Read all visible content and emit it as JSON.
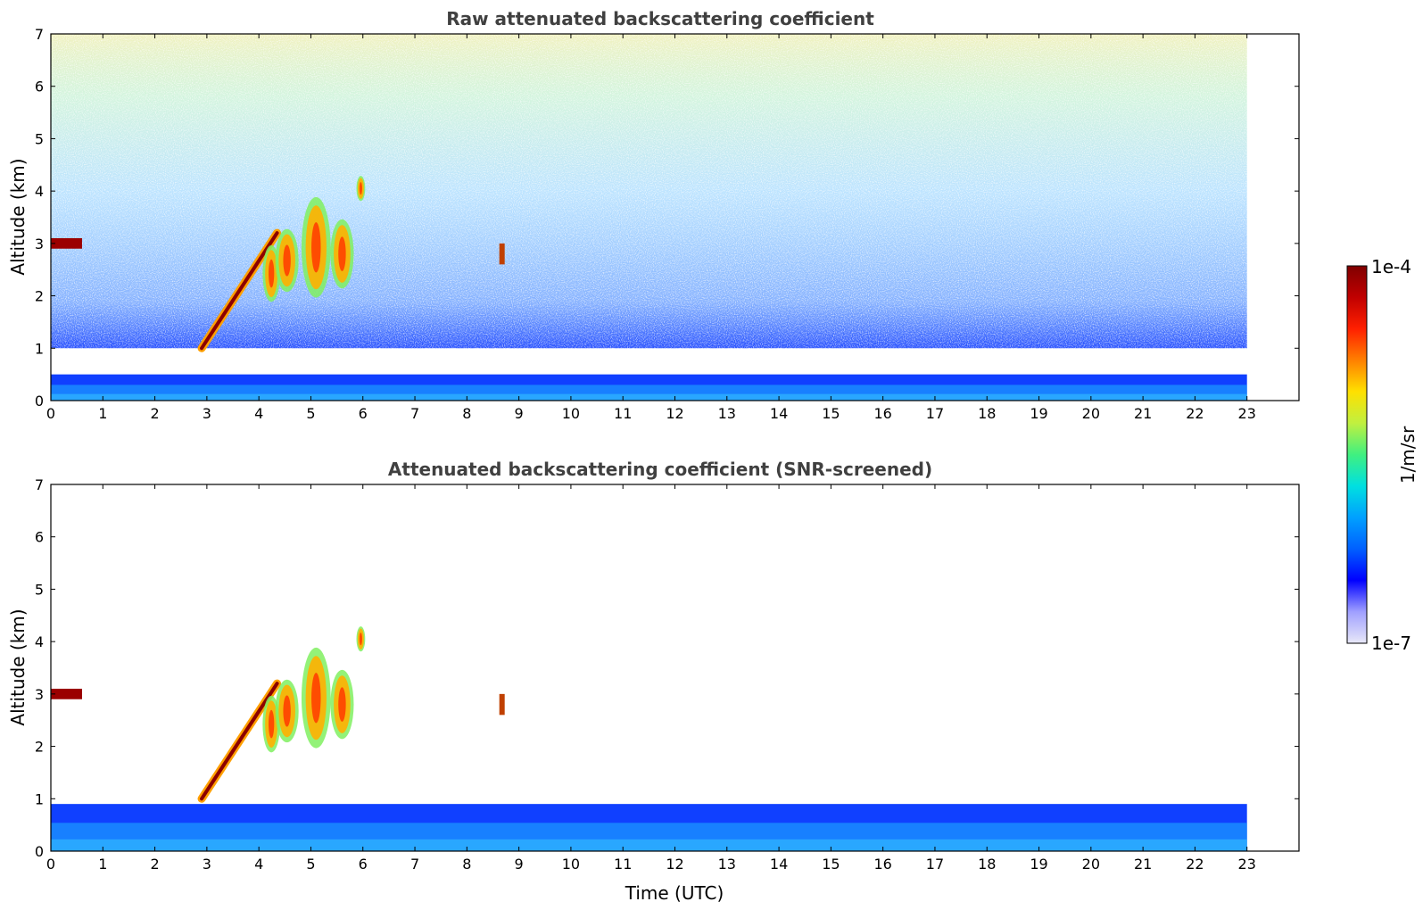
{
  "chart_data": [
    {
      "type": "heatmap",
      "title": "Raw attenuated backscattering coefficient",
      "xlabel": "",
      "ylabel": "Altitude (km)",
      "xlim": [
        0,
        24
      ],
      "ylim": [
        0,
        7
      ],
      "x_ticks": [
        0,
        1,
        2,
        3,
        4,
        5,
        6,
        7,
        8,
        9,
        10,
        11,
        12,
        13,
        14,
        15,
        16,
        17,
        18,
        19,
        20,
        21,
        22,
        23
      ],
      "y_ticks": [
        0,
        1,
        2,
        3,
        4,
        5,
        6,
        7
      ],
      "data_extent_x": [
        0,
        23
      ],
      "features": [
        {
          "kind": "boundary-layer",
          "x_range": [
            0,
            23
          ],
          "top_km": 0.5
        },
        {
          "kind": "noise",
          "x_range": [
            0,
            23
          ],
          "y_range": [
            1,
            7
          ]
        },
        {
          "kind": "cloud-layer",
          "x_range": [
            0,
            0.6
          ],
          "altitude_km": 3.0
        },
        {
          "kind": "rising-layer",
          "from": [
            2.9,
            1.0
          ],
          "to": [
            4.35,
            3.2
          ]
        },
        {
          "kind": "cloud-patches",
          "x_range": [
            4.0,
            6.0
          ],
          "y_range": [
            1.8,
            4.3
          ]
        },
        {
          "kind": "cloud-patch",
          "x_range": [
            8.6,
            8.75
          ],
          "y_range": [
            2.6,
            3.0
          ]
        }
      ]
    },
    {
      "type": "heatmap",
      "title": "Attenuated backscattering coefficient (SNR-screened)",
      "xlabel": "Time (UTC)",
      "ylabel": "Altitude (km)",
      "xlim": [
        0,
        24
      ],
      "ylim": [
        0,
        7
      ],
      "x_ticks": [
        0,
        1,
        2,
        3,
        4,
        5,
        6,
        7,
        8,
        9,
        10,
        11,
        12,
        13,
        14,
        15,
        16,
        17,
        18,
        19,
        20,
        21,
        22,
        23
      ],
      "y_ticks": [
        0,
        1,
        2,
        3,
        4,
        5,
        6,
        7
      ],
      "data_extent_x": [
        0,
        23
      ],
      "features": [
        {
          "kind": "boundary-layer",
          "x_range": [
            0,
            23
          ],
          "top_km": 0.9
        },
        {
          "kind": "cloud-layer",
          "x_range": [
            0,
            0.6
          ],
          "altitude_km": 3.0
        },
        {
          "kind": "rising-layer",
          "from": [
            2.9,
            1.0
          ],
          "to": [
            4.35,
            3.2
          ]
        },
        {
          "kind": "cloud-patches",
          "x_range": [
            4.0,
            6.0
          ],
          "y_range": [
            1.8,
            4.3
          ]
        },
        {
          "kind": "cloud-patch",
          "x_range": [
            8.6,
            8.75
          ],
          "y_range": [
            2.6,
            3.0
          ]
        }
      ]
    }
  ],
  "colorbar": {
    "label": "1/m/sr",
    "max_label": "1e-4",
    "min_label": "1e-7",
    "scale": "log",
    "colors": [
      "#e8e8f8",
      "#a0a0ff",
      "#0000ff",
      "#0060ff",
      "#00a0ff",
      "#00e0e0",
      "#40f080",
      "#c0f040",
      "#ffe000",
      "#ff8000",
      "#ff2000",
      "#c00000",
      "#800000"
    ]
  }
}
